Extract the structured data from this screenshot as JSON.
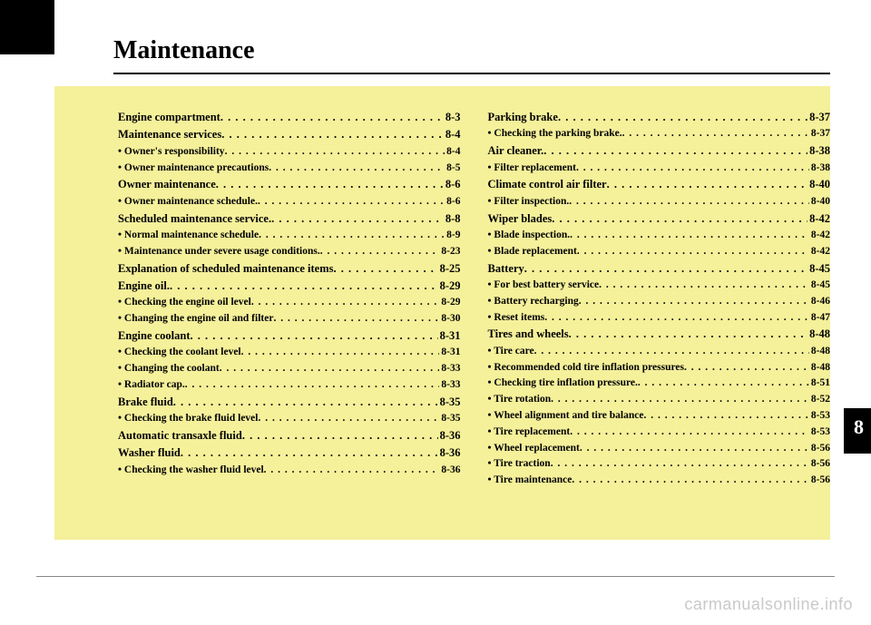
{
  "title": "Maintenance",
  "tab_number": "8",
  "watermark": "carmanualsonline.info",
  "colors": {
    "page_bg": "#ffffff",
    "content_bg": "#f5f09a",
    "text": "#000000",
    "tab_bg": "#000000",
    "tab_text": "#ffffff",
    "watermark": "#c9c9c9",
    "rule": "#888888"
  },
  "columns": [
    [
      {
        "level": 0,
        "label": "Engine compartment",
        "page": "8-3"
      },
      {
        "level": 0,
        "label": "Maintenance services",
        "page": "8-4"
      },
      {
        "level": 1,
        "label": "• Owner's responsibility",
        "page": "8-4"
      },
      {
        "level": 1,
        "label": "• Owner maintenance precautions",
        "page": "8-5"
      },
      {
        "level": 0,
        "label": "Owner maintenance",
        "page": "8-6"
      },
      {
        "level": 1,
        "label": "• Owner maintenance schedule.",
        "page": "8-6"
      },
      {
        "level": 0,
        "label": "Scheduled maintenance service.",
        "page": "8-8"
      },
      {
        "level": 1,
        "label": "• Normal maintenance schedule",
        "page": "8-9"
      },
      {
        "level": 1,
        "label": "• Maintenance under severe usage conditions.",
        "page": "8-23"
      },
      {
        "level": 0,
        "label": "Explanation of scheduled maintenance items",
        "page": "8-25"
      },
      {
        "level": 0,
        "label": "Engine oil.",
        "page": "8-29"
      },
      {
        "level": 1,
        "label": "• Checking the engine oil level",
        "page": "8-29"
      },
      {
        "level": 1,
        "label": "• Changing the engine oil and filter",
        "page": "8-30"
      },
      {
        "level": 0,
        "label": "Engine coolant",
        "page": "8-31"
      },
      {
        "level": 1,
        "label": "• Checking the coolant level",
        "page": "8-31"
      },
      {
        "level": 1,
        "label": "• Changing the coolant",
        "page": "8-33"
      },
      {
        "level": 1,
        "label": "• Radiator cap.",
        "page": "8-33"
      },
      {
        "level": 0,
        "label": "Brake fluid",
        "page": "8-35"
      },
      {
        "level": 1,
        "label": "• Checking the brake fluid level",
        "page": "8-35"
      },
      {
        "level": 0,
        "label": "Automatic transaxle fluid",
        "page": "8-36"
      },
      {
        "level": 0,
        "label": "Washer fluid",
        "page": "8-36"
      },
      {
        "level": 1,
        "label": "• Checking the washer fluid level",
        "page": "8-36"
      }
    ],
    [
      {
        "level": 0,
        "label": "Parking brake",
        "page": "8-37"
      },
      {
        "level": 1,
        "label": "• Checking the parking brake.",
        "page": "8-37"
      },
      {
        "level": 0,
        "label": "Air cleaner.",
        "page": "8-38"
      },
      {
        "level": 1,
        "label": "• Filter replacement",
        "page": "8-38"
      },
      {
        "level": 0,
        "label": "Climate control air filter",
        "page": "8-40"
      },
      {
        "level": 1,
        "label": "• Filter inspection.",
        "page": "8-40"
      },
      {
        "level": 0,
        "label": "Wiper blades",
        "page": "8-42"
      },
      {
        "level": 1,
        "label": "• Blade inspection.",
        "page": "8-42"
      },
      {
        "level": 1,
        "label": "• Blade replacement",
        "page": "8-42"
      },
      {
        "level": 0,
        "label": "Battery",
        "page": "8-45"
      },
      {
        "level": 1,
        "label": "• For best battery service",
        "page": "8-45"
      },
      {
        "level": 1,
        "label": "• Battery recharging",
        "page": "8-46"
      },
      {
        "level": 1,
        "label": "• Reset items",
        "page": "8-47"
      },
      {
        "level": 0,
        "label": "Tires and wheels",
        "page": "8-48"
      },
      {
        "level": 1,
        "label": "• Tire care",
        "page": "8-48"
      },
      {
        "level": 1,
        "label": "• Recommended cold tire inflation pressures",
        "page": "8-48"
      },
      {
        "level": 1,
        "label": "• Checking tire inflation pressure.",
        "page": "8-51"
      },
      {
        "level": 1,
        "label": "• Tire rotation",
        "page": "8-52"
      },
      {
        "level": 1,
        "label": "• Wheel alignment and tire balance",
        "page": "8-53"
      },
      {
        "level": 1,
        "label": "• Tire replacement",
        "page": "8-53"
      },
      {
        "level": 1,
        "label": "• Wheel replacement",
        "page": "8-56"
      },
      {
        "level": 1,
        "label": "• Tire traction",
        "page": "8-56"
      },
      {
        "level": 1,
        "label": "• Tire maintenance",
        "page": "8-56"
      }
    ]
  ]
}
